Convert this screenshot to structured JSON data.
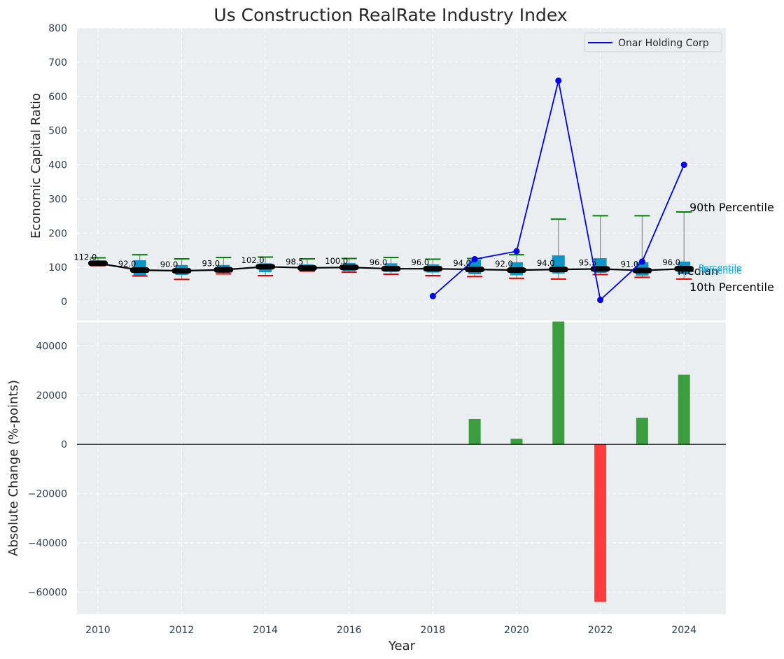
{
  "chart_data": [
    {
      "type": "box",
      "title": "Us Construction RealRate Industry Index",
      "xlabel": "",
      "ylabel": "Economic Capital Ratio",
      "ylim": [
        -55,
        800
      ],
      "xlim": [
        2009.5,
        2025
      ],
      "yticks": [
        0,
        100,
        200,
        300,
        400,
        500,
        600,
        700,
        800
      ],
      "ytick_labels": [
        "0",
        "100",
        "200",
        "300",
        "400",
        "500",
        "600",
        "700",
        "800"
      ],
      "grid": true,
      "years": [
        2010,
        2011,
        2012,
        2013,
        2014,
        2015,
        2016,
        2017,
        2018,
        2019,
        2020,
        2021,
        2022,
        2023,
        2024
      ],
      "industry": {
        "median": [
          112.0,
          92.0,
          90.0,
          93.0,
          102.0,
          98.5,
          100.0,
          96.0,
          96.0,
          94.0,
          92.0,
          94.0,
          95.5,
          91.0,
          96.0
        ],
        "median_labels": [
          "112.0",
          "92.0",
          "90.0",
          "93.0",
          "102.0",
          "98.5",
          "100.0",
          "96.0",
          "96.0",
          "94.0",
          "92.0",
          "94.0",
          "95.5",
          "91.0",
          "96.0"
        ],
        "q1": [
          108,
          77,
          78,
          84,
          86,
          91,
          89,
          87,
          85,
          80,
          77,
          82,
          84,
          76,
          80
        ],
        "q3": [
          118,
          121,
          107,
          107,
          112,
          109,
          113,
          112,
          109,
          122,
          115,
          135,
          127,
          115,
          117
        ],
        "p10": [
          105,
          75,
          65,
          81,
          76,
          89,
          86,
          80,
          76,
          73,
          68,
          66,
          79,
          71,
          66
        ],
        "p90": [
          128,
          137,
          125,
          129,
          130,
          125,
          126,
          129,
          124,
          126,
          137,
          241,
          251,
          251,
          262
        ]
      },
      "series": [
        {
          "name": "Onar Holding Corp",
          "color": "#0000ee",
          "x": [
            2018,
            2019,
            2020,
            2021,
            2022,
            2023,
            2024
          ],
          "y": [
            16,
            124,
            147,
            646,
            5,
            117,
            400
          ]
        }
      ],
      "annotations": {
        "p90": "90th Percentile",
        "median": "Median",
        "p10": "10th Percentile",
        "side_small": "Percentile"
      },
      "legend": {
        "position": "top-right",
        "entries": [
          "Onar Holding Corp"
        ]
      }
    },
    {
      "type": "bar",
      "title": "",
      "xlabel": "Year",
      "ylabel": "Absolute Change (%-points)",
      "ylim": [
        -69000,
        49500
      ],
      "yticks": [
        -60000,
        -40000,
        -20000,
        0,
        20000,
        40000
      ],
      "ytick_labels": [
        "−60000",
        "−40000",
        "−20000",
        "0",
        "20000",
        "40000"
      ],
      "xticks": [
        2010,
        2012,
        2014,
        2016,
        2018,
        2020,
        2022,
        2024
      ],
      "xtick_labels": [
        "2010",
        "2012",
        "2014",
        "2016",
        "2018",
        "2020",
        "2022",
        "2024"
      ],
      "grid": true,
      "x": [
        2019,
        2020,
        2021,
        2022,
        2023,
        2024
      ],
      "values": [
        10300,
        2300,
        49900,
        -64000,
        10800,
        28300
      ]
    }
  ],
  "colors": {
    "plot_bg": "#eaeef0",
    "grid": "#ffffff",
    "box": "#0e95c8",
    "box_light": "#7fb6d0",
    "p90_cap": "#008000",
    "p10_cap": "#dd0000",
    "whisker": "#8a8a8a",
    "median_line": "#000000",
    "company": "#0000ee",
    "bar_pos": "#3a9e3e",
    "bar_neg": "#ff3b3b",
    "side_small": "#1aa3d4"
  }
}
